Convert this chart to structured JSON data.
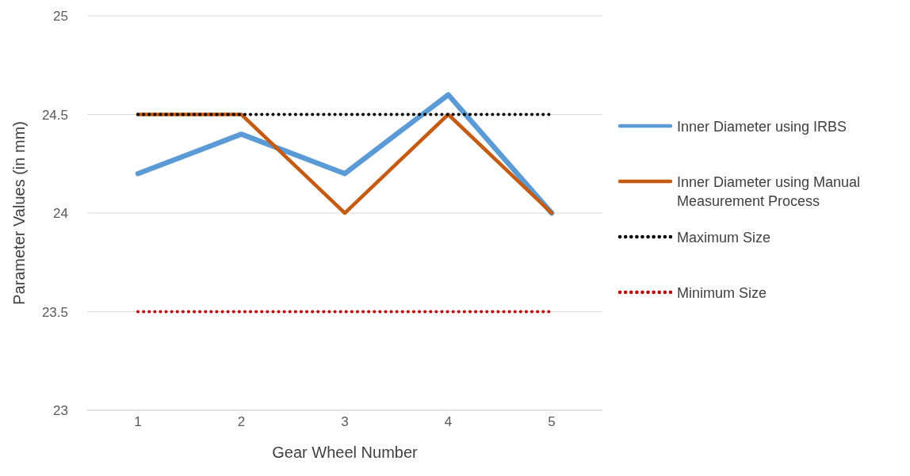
{
  "chart_data": {
    "type": "line",
    "xlabel": "Gear Wheel Number",
    "ylabel": "Parameter Values (in mm)",
    "categories": [
      "1",
      "2",
      "3",
      "4",
      "5"
    ],
    "series": [
      {
        "name": "Inner Diameter using IRBS",
        "color": "#5b9bd5",
        "values": [
          24.2,
          24.4,
          24.2,
          24.6,
          24.0
        ],
        "line_style": "solid"
      },
      {
        "name": "Inner Diameter using Manual Measurement Process",
        "color": "#c55a11",
        "values": [
          24.5,
          24.5,
          24.0,
          24.5,
          24.0
        ],
        "line_style": "solid"
      },
      {
        "name": "Maximum Size",
        "color": "#000000",
        "values": [
          24.5,
          24.5,
          24.5,
          24.5,
          24.5
        ],
        "line_style": "dotted"
      },
      {
        "name": "Minimum Size",
        "color": "#c00000",
        "values": [
          23.5,
          23.5,
          23.5,
          23.5,
          23.5
        ],
        "line_style": "dotted"
      }
    ],
    "ylim": [
      23,
      25
    ],
    "yticks": [
      23,
      23.5,
      24,
      24.5,
      25
    ],
    "grid": "y",
    "legend": "right",
    "marker": "none"
  }
}
